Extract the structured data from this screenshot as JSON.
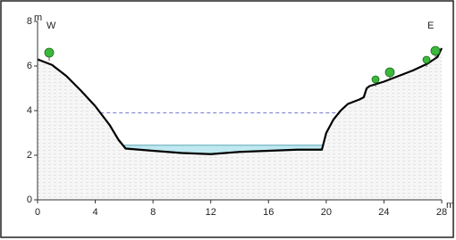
{
  "chart_data": {
    "type": "area",
    "x": [
      0,
      1,
      2,
      3,
      4,
      5,
      5.6,
      6.1,
      8,
      10,
      12,
      14,
      16,
      18,
      19.7,
      20,
      20.5,
      21,
      21.5,
      22.3,
      22.6,
      22.8,
      23,
      24,
      25,
      26,
      27,
      27.7,
      28
    ],
    "values": [
      6.3,
      6.05,
      5.55,
      4.9,
      4.2,
      3.35,
      2.7,
      2.3,
      2.2,
      2.1,
      2.05,
      2.15,
      2.2,
      2.25,
      2.25,
      3.0,
      3.6,
      4.0,
      4.3,
      4.5,
      4.6,
      5.0,
      5.1,
      5.3,
      5.55,
      5.8,
      6.1,
      6.4,
      6.8
    ],
    "color": "#000000",
    "water_level": 2.45,
    "water_color": "#bfe8f0",
    "high_water_level": 3.9,
    "high_water_color": "#5050c0",
    "xlim": [
      0,
      28
    ],
    "xticks": [
      0,
      4,
      8,
      12,
      16,
      20,
      24,
      28
    ],
    "ylim": [
      0,
      8
    ],
    "yticks": [
      0,
      2,
      4,
      6,
      8
    ],
    "x_label": "m",
    "y_label": "m",
    "annotations": [
      "W",
      "E"
    ]
  }
}
